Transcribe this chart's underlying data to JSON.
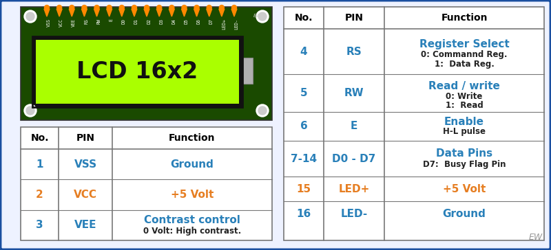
{
  "bg_color": "#eef2ff",
  "border_color": "#1a4fa0",
  "lcd_board_color": "#1a4a00",
  "lcd_screen_color": "#aaff00",
  "lcd_text": "LCD 16x2",
  "lcd_text_color": "#111111",
  "pin_labels": [
    "VSS",
    "VCC",
    "VEE",
    "RS",
    "RW",
    "E",
    "D0",
    "D1",
    "D2",
    "D3",
    "D4",
    "D5",
    "D6",
    "D7",
    "LED+",
    "LED-"
  ],
  "pin_connector_color": "#ff8800",
  "ew_color": "#999999",
  "table1_rows": [
    {
      "no": "1",
      "pin": "VSS",
      "func": "Ground",
      "no_color": "#2980b9",
      "pin_color": "#2980b9",
      "func_color": "#2980b9",
      "sub": ""
    },
    {
      "no": "2",
      "pin": "VCC",
      "func": "+5 Volt",
      "no_color": "#e67e22",
      "pin_color": "#e67e22",
      "func_color": "#e67e22",
      "sub": ""
    },
    {
      "no": "3",
      "pin": "VEE",
      "func": "Contrast control",
      "no_color": "#2980b9",
      "pin_color": "#2980b9",
      "func_color": "#2980b9",
      "sub": "0 Volt: High contrast."
    }
  ],
  "table2_rows": [
    {
      "no": "4",
      "pin": "RS",
      "func": "Register Select",
      "no_color": "#2980b9",
      "pin_color": "#2980b9",
      "func_color": "#2980b9",
      "sub": "0: Commannd Reg.\n1:  Data Reg."
    },
    {
      "no": "5",
      "pin": "RW",
      "func": "Read / write",
      "no_color": "#2980b9",
      "pin_color": "#2980b9",
      "func_color": "#2980b9",
      "sub": "0: Write\n1:  Read"
    },
    {
      "no": "6",
      "pin": "E",
      "func": "Enable",
      "no_color": "#2980b9",
      "pin_color": "#2980b9",
      "func_color": "#2980b9",
      "sub": "H-L pulse"
    },
    {
      "no": "7-14",
      "pin": "D0 - D7",
      "func": "Data Pins",
      "no_color": "#2980b9",
      "pin_color": "#2980b9",
      "func_color": "#2980b9",
      "sub": "D7:  Busy Flag Pin"
    },
    {
      "no": "15",
      "pin": "LED+",
      "func": "+5 Volt",
      "no_color": "#e67e22",
      "pin_color": "#e67e22",
      "func_color": "#e67e22",
      "sub": ""
    },
    {
      "no": "16",
      "pin": "LED-",
      "func": "Ground",
      "no_color": "#2980b9",
      "pin_color": "#2980b9",
      "func_color": "#2980b9",
      "sub": ""
    }
  ]
}
